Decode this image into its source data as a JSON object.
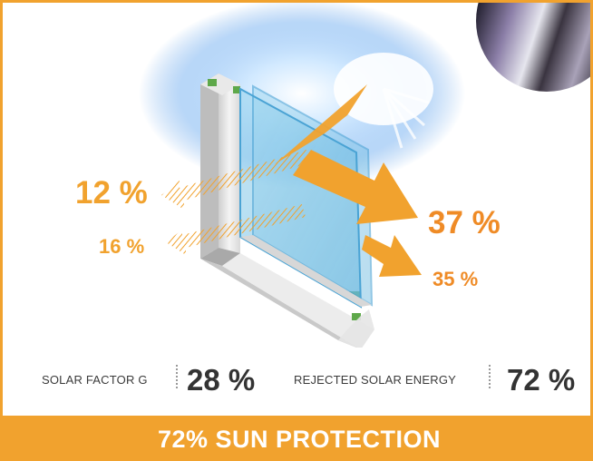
{
  "colors": {
    "accent": "#f1a22e",
    "dark_text": "#333333",
    "label_text": "#3b3b3b"
  },
  "illustration": {
    "reflected_outer": "12 %",
    "reflected_inner": "16 %",
    "transmitted_direct": "37 %",
    "transmitted_secondary": "35 %"
  },
  "stats": {
    "solar_factor_label": "SOLAR FACTOR G",
    "solar_factor_value": "28 %",
    "rejected_label": "REJECTED SOLAR ENERGY",
    "rejected_value": "72 %"
  },
  "footer": {
    "title": "72% SUN PROTECTION"
  },
  "icons": {
    "window": "window-cross-section-icon",
    "sun": "sun-rays-icon",
    "film": "film-roll-icon"
  }
}
